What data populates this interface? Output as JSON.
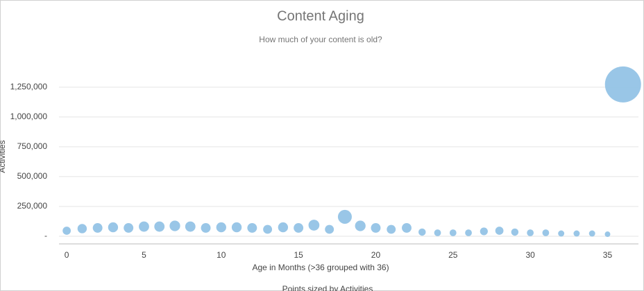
{
  "chart_data": {
    "type": "bubble",
    "title": "Content Aging",
    "subtitle": "How much of your content is old?",
    "x_label": "Age in Months (>36 grouped with 36)",
    "y_label": "Activities",
    "note": "Points sized by Activities",
    "color": "#93c3e6",
    "grid": true,
    "x": [
      0,
      1,
      2,
      3,
      4,
      5,
      6,
      7,
      8,
      9,
      10,
      11,
      12,
      13,
      14,
      15,
      16,
      17,
      18,
      19,
      20,
      21,
      22,
      23,
      24,
      25,
      26,
      27,
      28,
      29,
      30,
      31,
      32,
      33,
      34,
      35,
      36
    ],
    "values": [
      46500,
      64000,
      70000,
      75000,
      70000,
      81000,
      81000,
      87000,
      81000,
      70000,
      75000,
      75000,
      70000,
      58000,
      75000,
      70000,
      93000,
      58000,
      163000,
      87000,
      70000,
      58000,
      70000,
      35000,
      29000,
      29000,
      29000,
      41000,
      46500,
      35000,
      29000,
      29000,
      23000,
      23000,
      23000,
      17000,
      1273000
    ],
    "xlim": [
      -0.5,
      37
    ],
    "xticks": [
      0,
      5,
      10,
      15,
      20,
      25,
      30,
      35
    ],
    "ylim": [
      -64000,
      1400000
    ],
    "yticks": [
      {
        "value": 0,
        "label": "-"
      },
      {
        "value": 250000,
        "label": "250,000"
      },
      {
        "value": 500000,
        "label": "500,000"
      },
      {
        "value": 750000,
        "label": "750,000"
      },
      {
        "value": 1000000,
        "label": "1,000,000"
      },
      {
        "value": 1250000,
        "label": "1,250,000"
      }
    ]
  }
}
